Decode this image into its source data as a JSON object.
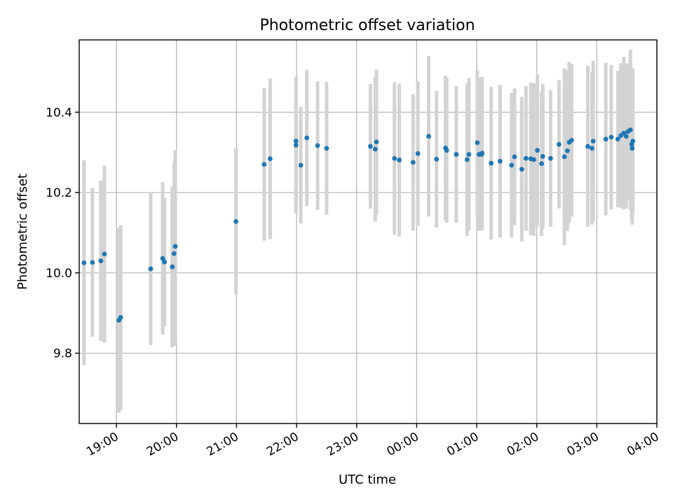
{
  "chart_data": {
    "type": "scatter",
    "title": "Photometric offset variation",
    "xlabel": "UTC time",
    "ylabel": "Photometric offset",
    "x_unit": "hours since 18:00 UTC",
    "xlim": [
      0.38,
      10.0
    ],
    "ylim": [
      9.625,
      10.58
    ],
    "grid": true,
    "x_ticks": [
      {
        "value": 1,
        "label": "19:00"
      },
      {
        "value": 2,
        "label": "20:00"
      },
      {
        "value": 3,
        "label": "21:00"
      },
      {
        "value": 4,
        "label": "22:00"
      },
      {
        "value": 5,
        "label": "23:00"
      },
      {
        "value": 6,
        "label": "00:00"
      },
      {
        "value": 7,
        "label": "01:00"
      },
      {
        "value": 8,
        "label": "02:00"
      },
      {
        "value": 9,
        "label": "03:00"
      },
      {
        "value": 10,
        "label": "04:00"
      }
    ],
    "y_ticks": [
      {
        "value": 9.8,
        "label": "9.8"
      },
      {
        "value": 10.0,
        "label": "10.0"
      },
      {
        "value": 10.2,
        "label": "10.2"
      },
      {
        "value": 10.4,
        "label": "10.4"
      }
    ],
    "series": [
      {
        "name": "offset",
        "marker_color": "#1f77b4",
        "errorbar_color": "#d3d3d3",
        "x": [
          0.46,
          0.6,
          0.74,
          0.8,
          1.04,
          1.07,
          1.57,
          1.77,
          1.8,
          1.93,
          1.96,
          1.98,
          2.99,
          3.46,
          3.56,
          3.99,
          3.99,
          4.07,
          4.17,
          4.35,
          4.5,
          5.23,
          5.31,
          5.33,
          5.63,
          5.71,
          5.94,
          6.02,
          6.2,
          6.33,
          6.48,
          6.5,
          6.66,
          6.84,
          6.87,
          7.01,
          7.04,
          7.08,
          7.09,
          7.24,
          7.39,
          7.58,
          7.63,
          7.75,
          7.82,
          7.9,
          7.95,
          8.01,
          8.08,
          8.1,
          8.23,
          8.37,
          8.46,
          8.51,
          8.54,
          8.58,
          8.85,
          8.92,
          8.94,
          9.15,
          9.24,
          9.35,
          9.4,
          9.45,
          9.49,
          9.52,
          9.56,
          9.58,
          9.59,
          9.6
        ],
        "y": [
          10.025,
          10.026,
          10.03,
          10.047,
          9.882,
          9.889,
          10.01,
          10.036,
          10.027,
          10.015,
          10.048,
          10.066,
          10.128,
          10.27,
          10.284,
          10.328,
          10.318,
          10.268,
          10.336,
          10.317,
          10.31,
          10.315,
          10.308,
          10.326,
          10.285,
          10.281,
          10.275,
          10.297,
          10.34,
          10.283,
          10.311,
          10.305,
          10.295,
          10.282,
          10.295,
          10.324,
          10.295,
          10.295,
          10.298,
          10.273,
          10.278,
          10.268,
          10.289,
          10.258,
          10.285,
          10.284,
          10.282,
          10.305,
          10.272,
          10.29,
          10.285,
          10.32,
          10.289,
          10.304,
          10.325,
          10.33,
          10.315,
          10.31,
          10.328,
          10.333,
          10.338,
          10.333,
          10.342,
          10.348,
          10.34,
          10.352,
          10.356,
          10.32,
          10.31,
          10.328
        ],
        "err": [
          0.255,
          0.185,
          0.2,
          0.22,
          0.23,
          0.23,
          0.19,
          0.19,
          0.16,
          0.2,
          0.23,
          0.24,
          0.182,
          0.19,
          0.2,
          0.16,
          0.17,
          0.145,
          0.17,
          0.16,
          0.165,
          0.155,
          0.18,
          0.18,
          0.19,
          0.19,
          0.17,
          0.18,
          0.2,
          0.17,
          0.18,
          0.18,
          0.17,
          0.19,
          0.19,
          0.18,
          0.19,
          0.19,
          0.19,
          0.19,
          0.19,
          0.18,
          0.17,
          0.18,
          0.18,
          0.19,
          0.19,
          0.19,
          0.18,
          0.18,
          0.17,
          0.16,
          0.22,
          0.2,
          0.2,
          0.19,
          0.2,
          0.19,
          0.2,
          0.19,
          0.18,
          0.17,
          0.18,
          0.19,
          0.18,
          0.17,
          0.2,
          0.19,
          0.19,
          0.18
        ]
      }
    ]
  }
}
